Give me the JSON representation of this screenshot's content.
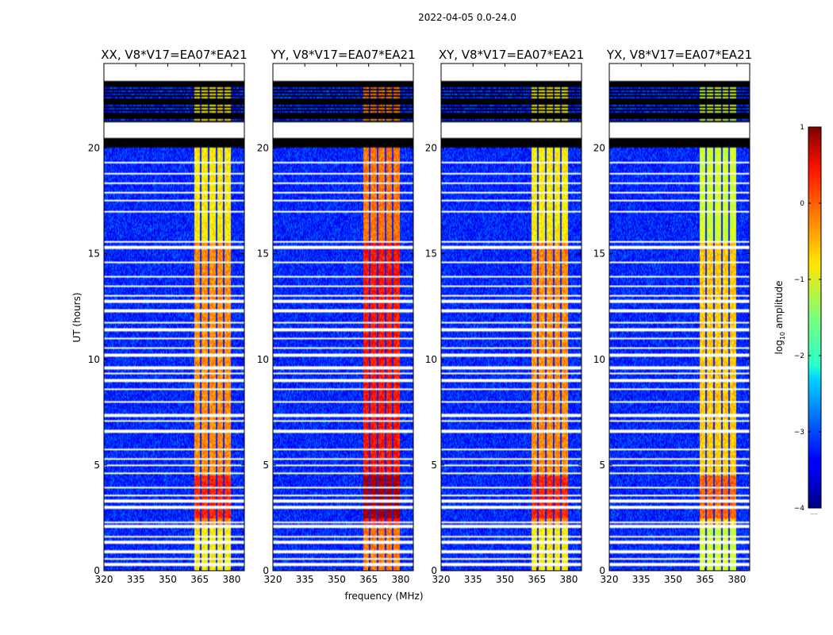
{
  "figure_title": "2022-04-05 0.0-24.0",
  "xlabel": "frequency (MHz)",
  "ylabel": "UT (hours)",
  "colorbar": {
    "label_prefix": "log",
    "label_sub": "10",
    "label_suffix": " amplitude",
    "ticks": [
      "1",
      "0",
      "−1",
      "−2",
      "−3",
      "−4"
    ],
    "tick_values": [
      1,
      0,
      -1,
      -2,
      -3,
      -4
    ],
    "range": [
      -4,
      1
    ],
    "colormap": "jet",
    "footer": "....."
  },
  "chart_data": [
    {
      "type": "heatmap",
      "title": "XX, V8*V17=EA07*EA21",
      "xlim": [
        320,
        386
      ],
      "ylim": [
        0,
        24
      ],
      "xticks": [
        320,
        335,
        350,
        365,
        380
      ],
      "yticks": [
        0,
        5,
        10,
        15,
        20
      ],
      "rfi_band_mhz": [
        362,
        380
      ],
      "background_log10_amp": -3.2,
      "rfi_peak_log10_amp": -0.3,
      "flagged_hours": [
        [
          20.0,
          24.0
        ]
      ]
    },
    {
      "type": "heatmap",
      "title": "YY, V8*V17=EA07*EA21",
      "xlim": [
        320,
        386
      ],
      "ylim": [
        0,
        24
      ],
      "xticks": [
        320,
        335,
        350,
        365,
        380
      ],
      "yticks": [
        0,
        5,
        10,
        15,
        20
      ],
      "rfi_band_mhz": [
        362,
        380
      ],
      "background_log10_amp": -3.2,
      "rfi_peak_log10_amp": 0.3,
      "flagged_hours": [
        [
          20.0,
          24.0
        ]
      ]
    },
    {
      "type": "heatmap",
      "title": "XY, V8*V17=EA07*EA21",
      "xlim": [
        320,
        386
      ],
      "ylim": [
        0,
        24
      ],
      "xticks": [
        320,
        335,
        350,
        365,
        380
      ],
      "yticks": [
        0,
        5,
        10,
        15,
        20
      ],
      "rfi_band_mhz": [
        362,
        380
      ],
      "background_log10_amp": -3.2,
      "rfi_peak_log10_amp": -0.3,
      "flagged_hours": [
        [
          20.0,
          24.0
        ]
      ]
    },
    {
      "type": "heatmap",
      "title": "YX, V8*V17=EA07*EA21",
      "xlim": [
        320,
        386
      ],
      "ylim": [
        0,
        24
      ],
      "xticks": [
        320,
        335,
        350,
        365,
        380
      ],
      "yticks": [
        0,
        5,
        10,
        15,
        20
      ],
      "rfi_band_mhz": [
        362,
        380
      ],
      "background_log10_amp": -3.2,
      "rfi_peak_log10_amp": -0.6,
      "flagged_hours": [
        [
          20.0,
          24.0
        ]
      ]
    }
  ]
}
